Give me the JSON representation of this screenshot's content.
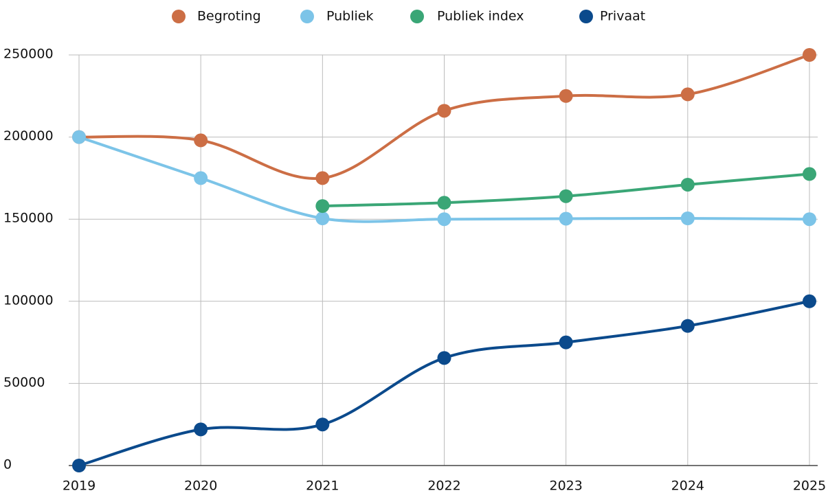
{
  "chart_data": {
    "type": "line",
    "categories": [
      "2019",
      "2020",
      "2021",
      "2022",
      "2023",
      "2024",
      "2025"
    ],
    "series": [
      {
        "name": "Begroting",
        "color": "#cc6e45",
        "values": [
          200000,
          198000,
          175000,
          216000,
          225000,
          226000,
          250000
        ]
      },
      {
        "name": "Publiek",
        "color": "#7cc4e8",
        "values": [
          200000,
          175000,
          150500,
          150000,
          150300,
          150500,
          150000
        ]
      },
      {
        "name": "Publiek index",
        "color": "#3aa676",
        "values": [
          null,
          null,
          158000,
          160000,
          164000,
          171000,
          177500
        ]
      },
      {
        "name": "Privaat",
        "color": "#0b4a8c",
        "values": [
          0,
          22000,
          25000,
          65500,
          75000,
          85000,
          100000
        ]
      }
    ],
    "ylim": [
      0,
      250000
    ],
    "yticks": [
      0,
      50000,
      100000,
      150000,
      200000,
      250000
    ],
    "grid": true,
    "legend": "top"
  }
}
